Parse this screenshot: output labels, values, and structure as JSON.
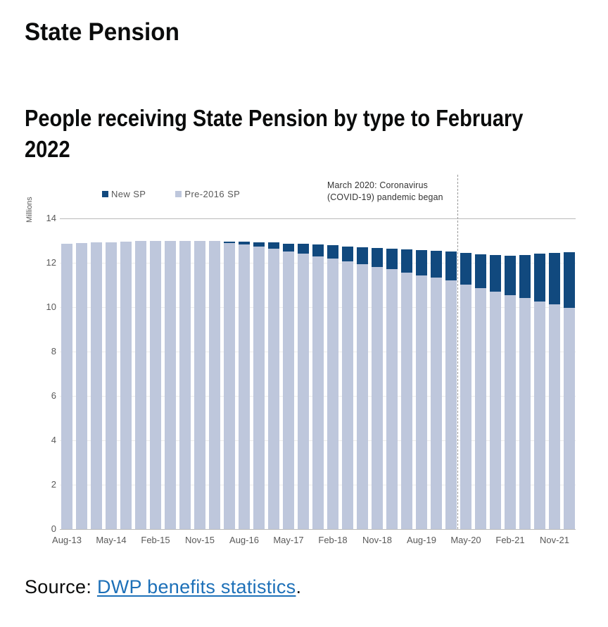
{
  "page": {
    "title": "State Pension",
    "heading_line1": "People receiving State Pension by type to February",
    "heading_line2": "2022",
    "source_prefix": "Source: ",
    "source_link": "DWP benefits statistics",
    "source_suffix": "."
  },
  "chart_data": {
    "type": "bar",
    "stacked": true,
    "title": "People receiving State Pension by type to February 2022",
    "ylabel": "Millions",
    "ylim": [
      0,
      14
    ],
    "y_ticks": [
      0,
      2,
      4,
      6,
      8,
      10,
      12,
      14
    ],
    "x_tick_every": 3,
    "legend_position": "top",
    "categories": [
      "Aug-13",
      "Nov-13",
      "Feb-14",
      "May-14",
      "Aug-14",
      "Nov-14",
      "Feb-15",
      "May-15",
      "Aug-15",
      "Nov-15",
      "Feb-16",
      "May-16",
      "Aug-16",
      "Nov-16",
      "Feb-17",
      "May-17",
      "Aug-17",
      "Nov-17",
      "Feb-18",
      "May-18",
      "Aug-18",
      "Nov-18",
      "Feb-19",
      "May-19",
      "Aug-19",
      "Nov-19",
      "Feb-20",
      "May-20",
      "Aug-20",
      "Nov-20",
      "Feb-21",
      "May-21",
      "Aug-21",
      "Nov-21",
      "Feb-22"
    ],
    "series": [
      {
        "name": "New SP",
        "color": "#11497e",
        "values": [
          0,
          0,
          0,
          0,
          0,
          0,
          0,
          0,
          0,
          0,
          0,
          0.06,
          0.13,
          0.2,
          0.28,
          0.36,
          0.44,
          0.52,
          0.6,
          0.68,
          0.77,
          0.86,
          0.94,
          1.04,
          1.13,
          1.22,
          1.31,
          1.42,
          1.52,
          1.65,
          1.78,
          1.96,
          2.14,
          2.32,
          2.5
        ]
      },
      {
        "name": "Pre-2016 SP",
        "color": "#bec7dc",
        "values": [
          12.87,
          12.9,
          12.91,
          12.93,
          12.96,
          12.99,
          13.0,
          12.97,
          12.97,
          12.97,
          12.97,
          12.89,
          12.82,
          12.73,
          12.64,
          12.51,
          12.41,
          12.3,
          12.19,
          12.05,
          11.93,
          11.82,
          11.71,
          11.55,
          11.44,
          11.32,
          11.2,
          11.02,
          10.86,
          10.71,
          10.55,
          10.4,
          10.26,
          10.12,
          9.98
        ]
      }
    ],
    "annotation": {
      "line1": "March 2020: Coronavirus",
      "line2": "(COVID-19) pandemic began",
      "dashed_line_after_category": "Feb-20"
    }
  }
}
